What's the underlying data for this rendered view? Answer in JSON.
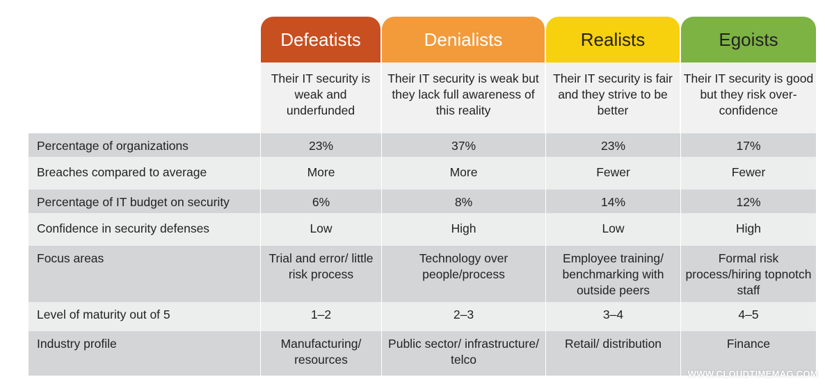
{
  "segments": [
    {
      "name": "Defeatists",
      "color": "#c84f1f",
      "text_color": "#ffffff",
      "description": "Their IT security is weak and underfunded"
    },
    {
      "name": "Denialists",
      "color": "#f39a3a",
      "text_color": "#ffffff",
      "description": "Their IT security  is weak but they lack full awareness of this reality"
    },
    {
      "name": "Realists",
      "color": "#f7d00e",
      "text_color": "#222222",
      "description": "Their IT security is fair and they strive to be better"
    },
    {
      "name": "Egoists",
      "color": "#7cb343",
      "text_color": "#222222",
      "description": "Their IT security is good but they risk over-confidence"
    }
  ],
  "rows": [
    {
      "label": "Percentage of organizations",
      "values": [
        "23%",
        "37%",
        "23%",
        "17%"
      ]
    },
    {
      "label": "Breaches compared to average",
      "values": [
        "More",
        "More",
        "Fewer",
        "Fewer"
      ]
    },
    {
      "label": "Percentage of IT budget on security",
      "values": [
        "6%",
        "8%",
        "14%",
        "12%"
      ]
    },
    {
      "label": "Confidence in security defenses",
      "values": [
        "Low",
        "High",
        "Low",
        "High"
      ]
    },
    {
      "label": "Focus areas",
      "values": [
        "Trial and error/ little risk process",
        "Technology over people/process",
        "Employee training/ benchmarking with outside peers",
        "Formal risk process/hiring topnotch staff"
      ]
    },
    {
      "label": "Level of maturity out of 5",
      "values": [
        "1–2",
        "2–3",
        "3–4",
        "4–5"
      ]
    },
    {
      "label": "Industry profile",
      "values": [
        "Manufacturing/ resources",
        "Public sector/ infrastructure/ telco",
        "Retail/ distribution",
        "Finance"
      ]
    }
  ],
  "watermark": "WWW.CLOUDTIMEMAG.COM"
}
